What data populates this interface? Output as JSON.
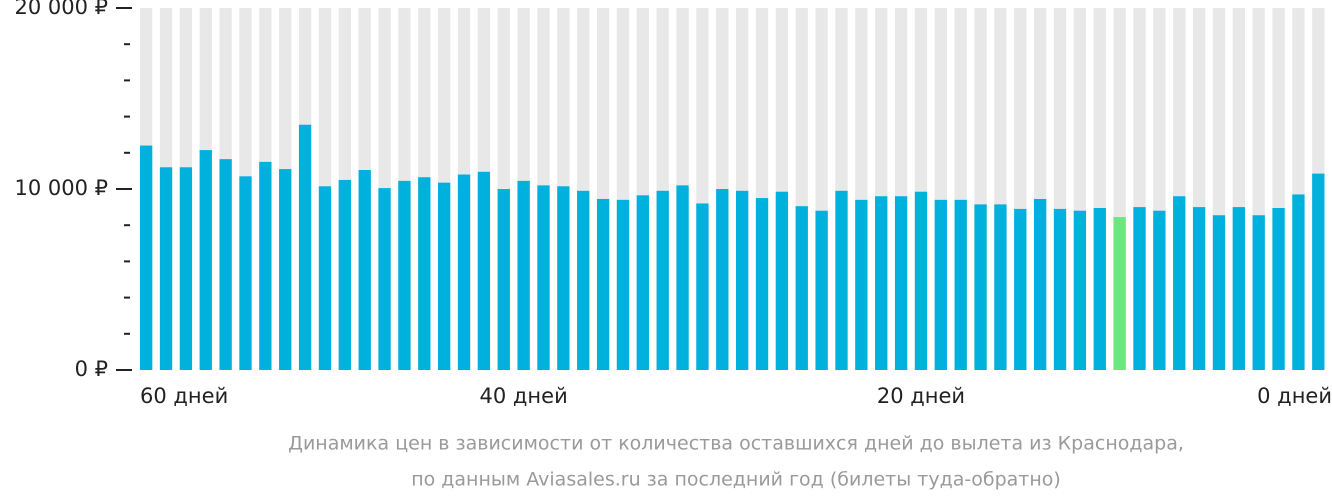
{
  "chart_data": {
    "type": "bar",
    "categories": [
      "60 дней",
      null,
      null,
      null,
      null,
      null,
      null,
      null,
      null,
      null,
      null,
      null,
      null,
      null,
      null,
      null,
      null,
      null,
      null,
      "40 дней",
      null,
      null,
      null,
      null,
      null,
      null,
      null,
      null,
      null,
      null,
      null,
      null,
      null,
      null,
      null,
      null,
      null,
      null,
      null,
      "20 дней",
      null,
      null,
      null,
      null,
      null,
      null,
      null,
      null,
      null,
      null,
      null,
      null,
      null,
      null,
      null,
      null,
      null,
      null,
      null,
      "0 дней"
    ],
    "values": [
      12400,
      11200,
      11200,
      12150,
      11650,
      10700,
      11500,
      11100,
      13550,
      10150,
      10500,
      11050,
      10050,
      10450,
      10650,
      10350,
      10800,
      10950,
      10000,
      10450,
      10200,
      10150,
      9900,
      9450,
      9400,
      9650,
      9900,
      10200,
      9200,
      10000,
      9900,
      9500,
      9850,
      9050,
      8800,
      9900,
      9400,
      9600,
      9600,
      9850,
      9400,
      9400,
      9150,
      9150,
      8900,
      9450,
      8900,
      8800,
      8950,
      8450,
      9000,
      8800,
      9600,
      9000,
      8550,
      9000,
      8550,
      8950,
      9700,
      10850
    ],
    "color": "#00b1dd",
    "highlight": {
      "index": 49,
      "color": "#6ee67f"
    },
    "background_color": "#e8e8e8",
    "ylim": [
      0,
      20000
    ],
    "yticks": [
      {
        "value": 0,
        "label": "0 ₽"
      },
      {
        "value": 10000,
        "label": "10 000 ₽"
      },
      {
        "value": 20000,
        "label": "20 000 ₽"
      }
    ],
    "minor_yticks": [
      2000,
      4000,
      6000,
      8000,
      12000,
      14000,
      16000,
      18000
    ],
    "caption": [
      "Динамика цен в зависимости от количества оставшихся дней до вылета из Краснодара,",
      "по данным Aviasales.ru за последний год (билеты туда-обратно)"
    ]
  }
}
